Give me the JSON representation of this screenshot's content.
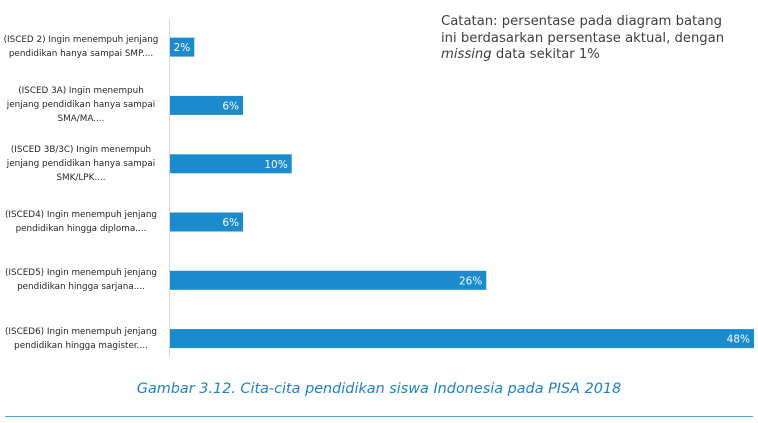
{
  "chart_data": {
    "type": "bar",
    "orientation": "horizontal",
    "categories": [
      [
        "(ISCED 2) Ingin menempuh jenjang",
        "pendidikan hanya sampai SMP...."
      ],
      [
        "(ISCED 3A) Ingin menempuh",
        "jenjang pendidikan hanya sampai",
        "SMA/MA...."
      ],
      [
        "(ISCED 3B/3C) Ingin menempuh",
        "jenjang pendidikan hanya sampai",
        "SMK/LPK...."
      ],
      [
        "(ISCED4) Ingin menempuh jenjang",
        "pendidikan hingga diploma...."
      ],
      [
        "(ISCED5) Ingin menempuh jenjang",
        "pendidikan hingga sarjana...."
      ],
      [
        "(ISCED6) Ingin menempuh jenjang",
        "pendidikan hingga magister...."
      ]
    ],
    "values": [
      2,
      6,
      10,
      6,
      26,
      48
    ],
    "value_labels": [
      "2%",
      "6%",
      "10%",
      "6%",
      "26%",
      "48%"
    ],
    "xlim": [
      0,
      48
    ],
    "bar_color": "#1b8bcd",
    "label_color": "#ffffff",
    "grid": false,
    "legend": false
  },
  "note": {
    "line1": "Catatan: persentase pada diagram batang",
    "line2": "ini berdasarkan persentase aktual, dengan",
    "line3_italic": "missing",
    "line3_rest": " data sekitar 1%"
  },
  "caption": "Gambar 3.12. Cita-cita pendidikan siswa Indonesia pada PISA 2018"
}
